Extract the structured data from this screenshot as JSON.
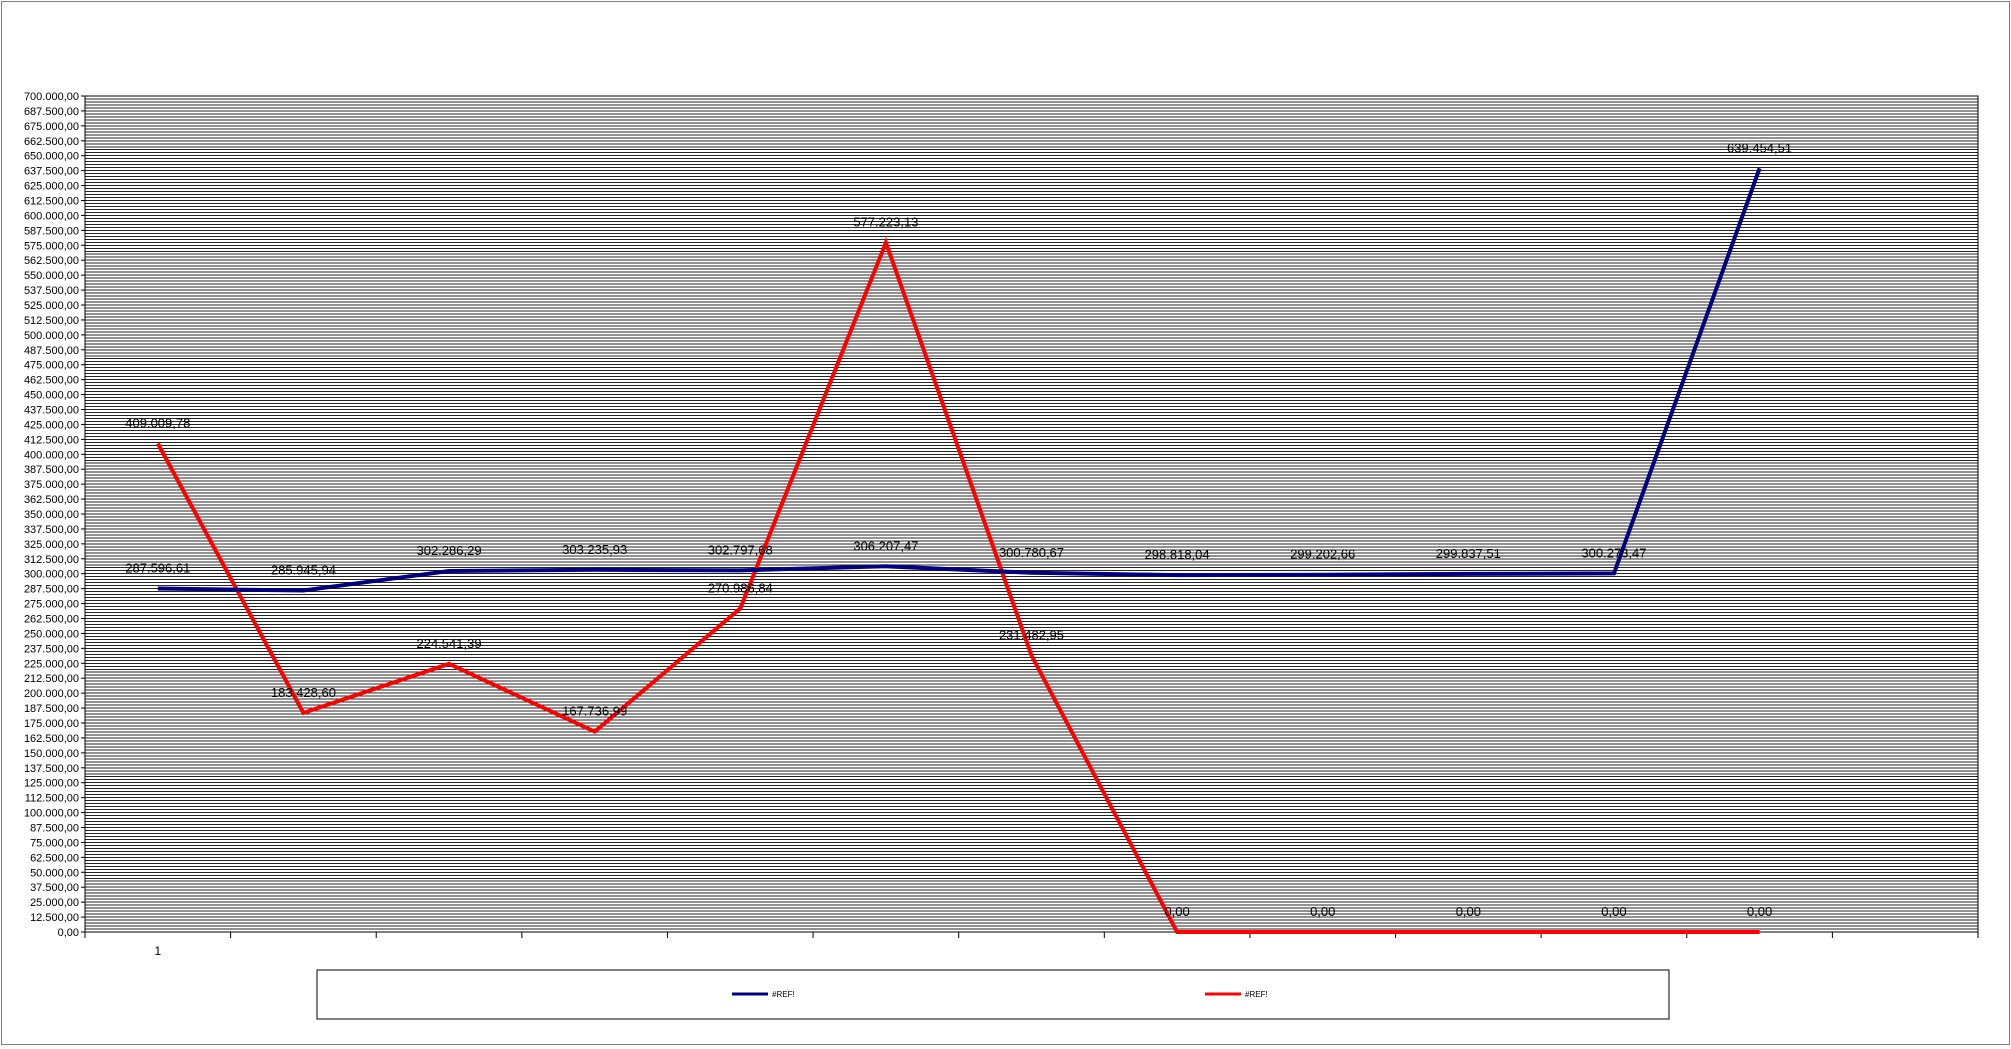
{
  "chart_data": {
    "type": "line",
    "title": "",
    "xlabel": "",
    "ylabel": "",
    "x_tick_labels": [
      "1",
      "",
      "",
      "",
      "",
      "",
      "",
      "",
      "",
      "",
      "",
      ""
    ],
    "ylim": [
      0,
      700000
    ],
    "grid": true,
    "legend_position": "bottom",
    "series": [
      {
        "name": "#REF!",
        "color": "#000080",
        "values": [
          287596.61,
          285945.94,
          302286.29,
          303235.93,
          302797.68,
          306207.47,
          300780.67,
          298818.04,
          299202.66,
          299837.51,
          300273.47,
          639454.51
        ],
        "labels": [
          "287.596,61",
          "285.945,94",
          "302.286,29",
          "303.235,93",
          "302.797,68",
          "306.207,47",
          "300.780,67",
          "298.818,04",
          "299.202,66",
          "299.837,51",
          "300.273,47",
          "639.454,51"
        ]
      },
      {
        "name": "#REF!",
        "color": "#ff0000",
        "values": [
          409009.78,
          183428.6,
          224541.39,
          167736.99,
          270986.84,
          577223.13,
          231482.95,
          0,
          0,
          0,
          0,
          0
        ],
        "labels": [
          "409.009,78",
          "183.428,60",
          "224.541,39",
          "167.736,99",
          "270.986,84",
          "577.223,13",
          "231.482,95",
          "0,00",
          "0,00",
          "0,00",
          "0,00",
          "0,00"
        ]
      }
    ]
  }
}
